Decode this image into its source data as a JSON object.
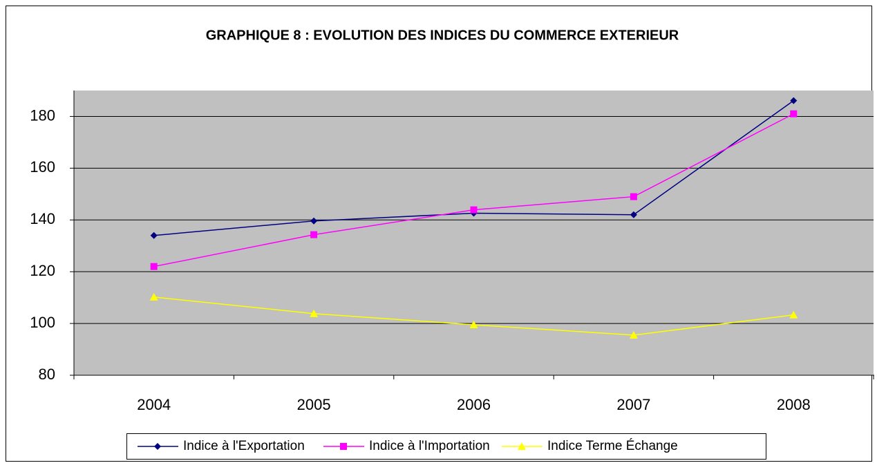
{
  "chart_data": {
    "type": "line",
    "title": "GRAPHIQUE 8 : EVOLUTION DES INDICES DU COMMERCE EXTERIEUR",
    "categories": [
      "2004",
      "2005",
      "2006",
      "2007",
      "2008"
    ],
    "series": [
      {
        "name": "Indice à l'Exportation",
        "color": "#000080",
        "marker": "diamond",
        "values": [
          134,
          139.6,
          142.6,
          142,
          186.1
        ]
      },
      {
        "name": "Indice à l'Importation",
        "color": "#FF00FF",
        "marker": "square",
        "values": [
          122,
          134.3,
          143.9,
          149,
          181
        ]
      },
      {
        "name": "Indice Terme Échange",
        "color": "#FFFF00",
        "marker": "triangle",
        "values": [
          110.2,
          103.8,
          99.5,
          95.5,
          103.3
        ]
      }
    ],
    "ylim": [
      80,
      190
    ],
    "yticks": [
      80,
      100,
      120,
      140,
      160,
      180
    ],
    "grid": true,
    "legend": "bottom"
  }
}
